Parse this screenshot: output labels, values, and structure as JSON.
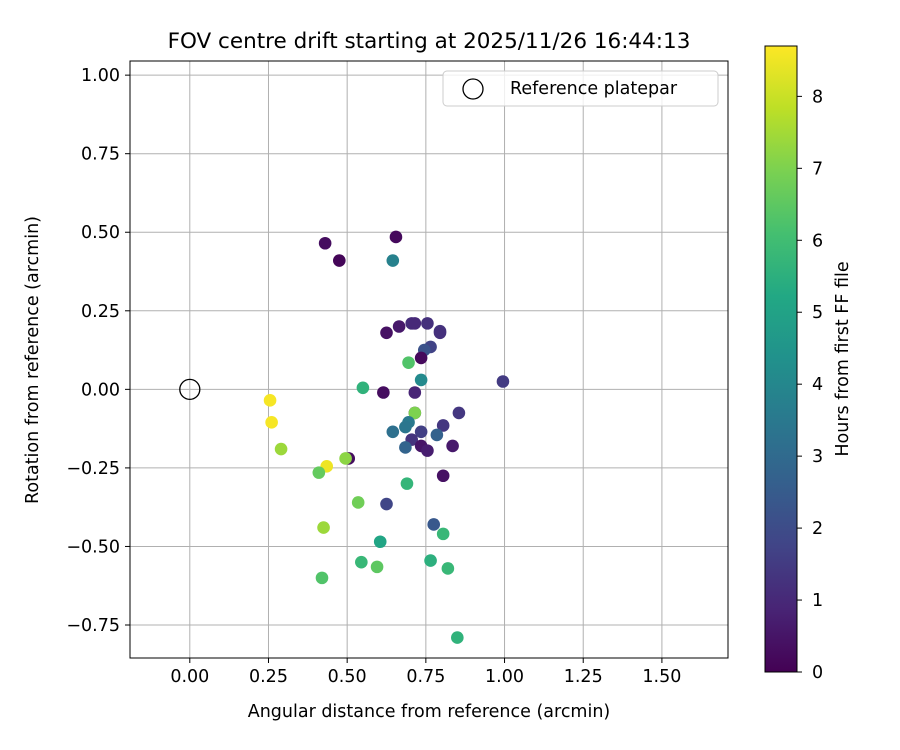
{
  "chart_data": {
    "type": "scatter",
    "title": "FOV centre drift starting at 2025/11/26 16:44:13",
    "xlabel": "Angular distance from reference (arcmin)",
    "ylabel": "Rotation from reference (arcmin)",
    "xlim": [
      -0.19,
      1.71
    ],
    "ylim": [
      -0.855,
      1.045
    ],
    "xticks": [
      0.0,
      0.25,
      0.5,
      0.75,
      1.0,
      1.25,
      1.5
    ],
    "xtick_labels": [
      "0.00",
      "0.25",
      "0.50",
      "0.75",
      "1.00",
      "1.25",
      "1.50"
    ],
    "yticks": [
      1.0,
      0.75,
      0.5,
      0.25,
      0.0,
      -0.25,
      -0.5,
      -0.75
    ],
    "ytick_labels": [
      "1.00",
      "0.75",
      "0.50",
      "0.25",
      "0.00",
      "−0.25",
      "−0.50",
      "−0.75"
    ],
    "grid": true,
    "legend": {
      "position": "top-right",
      "label": "Reference platepar"
    },
    "reference_point": {
      "x": 0.0,
      "y": 0.0
    },
    "colorbar": {
      "label": "Hours from first FF file",
      "min": 0,
      "max": 8.7,
      "ticks": [
        0,
        1,
        2,
        3,
        4,
        5,
        6,
        7,
        8
      ],
      "tick_labels": [
        "0",
        "1",
        "2",
        "3",
        "4",
        "5",
        "6",
        "7",
        "8"
      ],
      "colormap": "viridis"
    },
    "points": [
      {
        "x": 0.43,
        "y": 0.465,
        "c": 0.3
      },
      {
        "x": 0.655,
        "y": 0.485,
        "c": 0.2
      },
      {
        "x": 0.475,
        "y": 0.41,
        "c": 0.1
      },
      {
        "x": 0.645,
        "y": 0.41,
        "c": 3.8
      },
      {
        "x": 0.625,
        "y": 0.18,
        "c": 0.4
      },
      {
        "x": 0.665,
        "y": 0.2,
        "c": 0.6
      },
      {
        "x": 0.705,
        "y": 0.21,
        "c": 1.1
      },
      {
        "x": 0.715,
        "y": 0.21,
        "c": 1.0
      },
      {
        "x": 0.755,
        "y": 0.21,
        "c": 1.2
      },
      {
        "x": 0.795,
        "y": 0.185,
        "c": 1.3
      },
      {
        "x": 0.795,
        "y": 0.18,
        "c": 1.2
      },
      {
        "x": 0.765,
        "y": 0.135,
        "c": 1.7
      },
      {
        "x": 0.745,
        "y": 0.125,
        "c": 2.2
      },
      {
        "x": 0.735,
        "y": 0.1,
        "c": 0.2
      },
      {
        "x": 0.695,
        "y": 0.085,
        "c": 6.3
      },
      {
        "x": 0.735,
        "y": 0.03,
        "c": 4.1
      },
      {
        "x": 0.55,
        "y": 0.005,
        "c": 5.6
      },
      {
        "x": 0.615,
        "y": -0.01,
        "c": 0.3
      },
      {
        "x": 0.715,
        "y": -0.01,
        "c": 0.9
      },
      {
        "x": 0.995,
        "y": 0.025,
        "c": 1.5
      },
      {
        "x": 0.855,
        "y": -0.075,
        "c": 1.4
      },
      {
        "x": 0.715,
        "y": -0.075,
        "c": 0.6
      },
      {
        "x": 0.715,
        "y": -0.075,
        "c": 7.0
      },
      {
        "x": 0.695,
        "y": -0.105,
        "c": 3.5
      },
      {
        "x": 0.685,
        "y": -0.12,
        "c": 3.4
      },
      {
        "x": 0.805,
        "y": -0.115,
        "c": 1.4
      },
      {
        "x": 0.645,
        "y": -0.135,
        "c": 3.2
      },
      {
        "x": 0.735,
        "y": -0.135,
        "c": 1.6
      },
      {
        "x": 0.785,
        "y": -0.145,
        "c": 2.7
      },
      {
        "x": 0.705,
        "y": -0.16,
        "c": 1.3
      },
      {
        "x": 0.735,
        "y": -0.18,
        "c": 0.5
      },
      {
        "x": 0.835,
        "y": -0.18,
        "c": 0.6
      },
      {
        "x": 0.685,
        "y": -0.185,
        "c": 2.8
      },
      {
        "x": 0.755,
        "y": -0.195,
        "c": 0.7
      },
      {
        "x": 0.505,
        "y": -0.22,
        "c": 0.3
      },
      {
        "x": 0.495,
        "y": -0.22,
        "c": 7.2
      },
      {
        "x": 0.805,
        "y": -0.275,
        "c": 0.4
      },
      {
        "x": 0.29,
        "y": -0.19,
        "c": 7.4
      },
      {
        "x": 0.435,
        "y": -0.245,
        "c": 8.5
      },
      {
        "x": 0.41,
        "y": -0.265,
        "c": 6.6
      },
      {
        "x": 0.255,
        "y": -0.035,
        "c": 8.6
      },
      {
        "x": 0.26,
        "y": -0.105,
        "c": 8.6
      },
      {
        "x": 0.69,
        "y": -0.3,
        "c": 5.7
      },
      {
        "x": 0.535,
        "y": -0.36,
        "c": 6.8
      },
      {
        "x": 0.625,
        "y": -0.365,
        "c": 1.8
      },
      {
        "x": 0.425,
        "y": -0.44,
        "c": 7.4
      },
      {
        "x": 0.775,
        "y": -0.43,
        "c": 2.4
      },
      {
        "x": 0.805,
        "y": -0.46,
        "c": 5.8
      },
      {
        "x": 0.605,
        "y": -0.485,
        "c": 5.1
      },
      {
        "x": 0.545,
        "y": -0.55,
        "c": 5.8
      },
      {
        "x": 0.595,
        "y": -0.565,
        "c": 6.5
      },
      {
        "x": 0.765,
        "y": -0.545,
        "c": 5.5
      },
      {
        "x": 0.82,
        "y": -0.57,
        "c": 5.8
      },
      {
        "x": 0.42,
        "y": -0.6,
        "c": 6.3
      },
      {
        "x": 0.85,
        "y": -0.79,
        "c": 5.6
      }
    ]
  }
}
